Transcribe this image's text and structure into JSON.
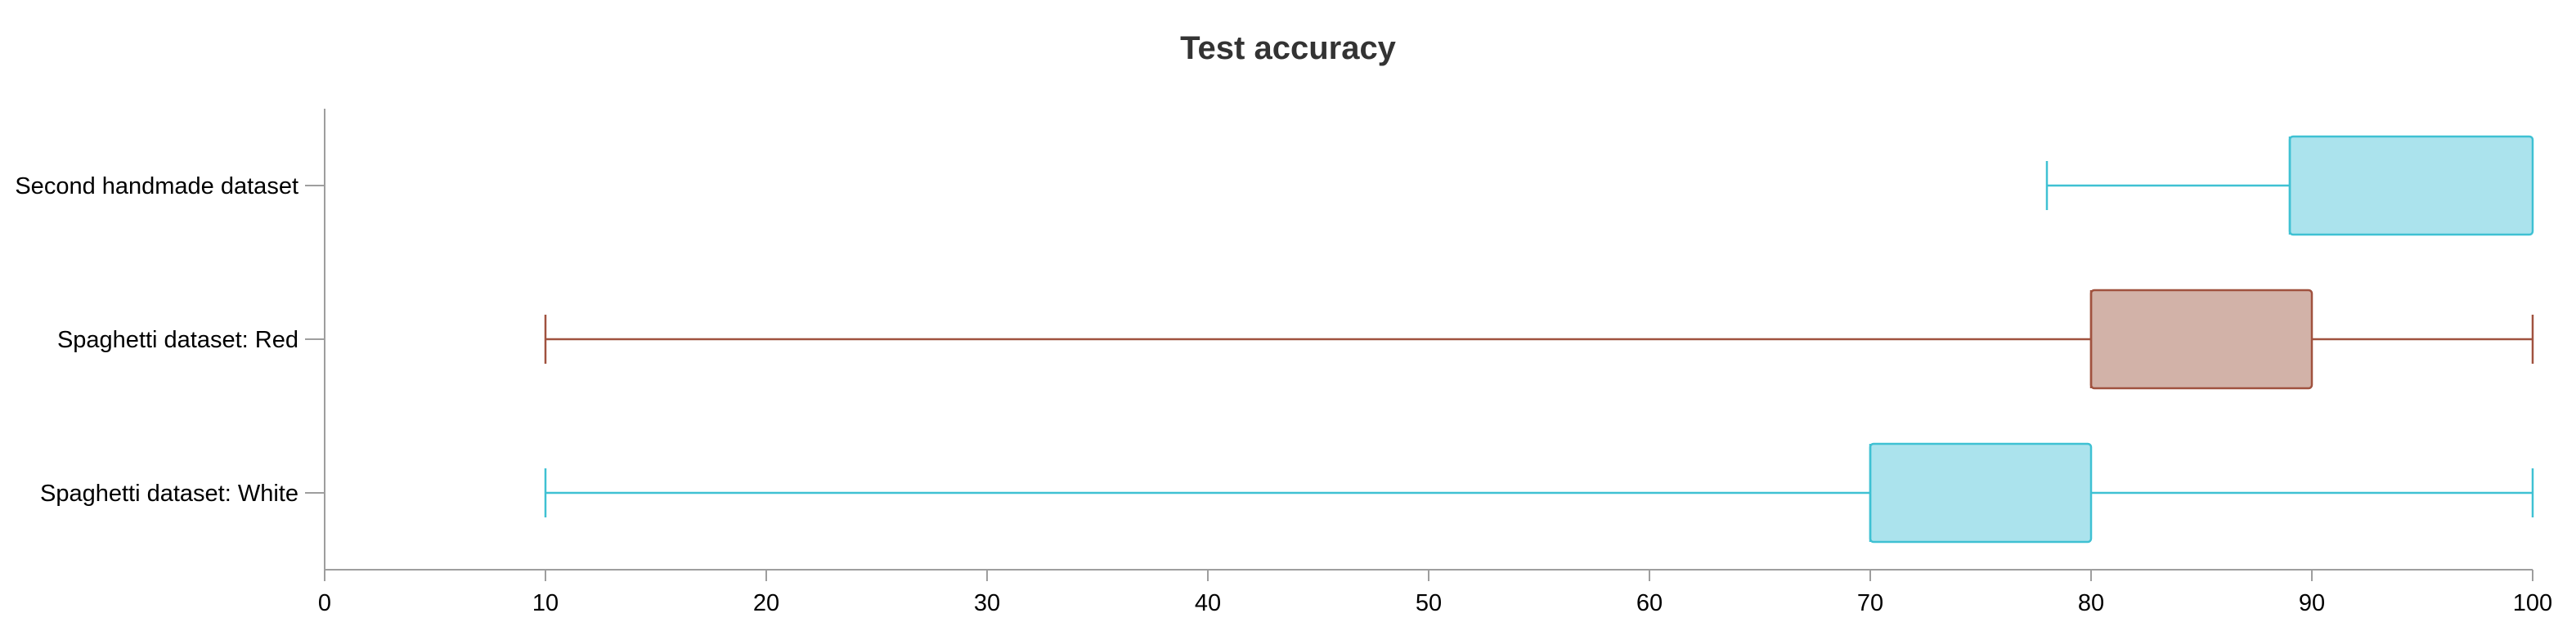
{
  "chart_data": {
    "type": "boxplot",
    "title": "Test accuracy",
    "xlabel": "",
    "ylabel": "",
    "orientation": "horizontal",
    "xlim": [
      0,
      100
    ],
    "xticks": [
      0,
      10,
      20,
      30,
      40,
      50,
      60,
      70,
      80,
      90,
      100
    ],
    "grid": false,
    "categories": [
      "Second handmade dataset",
      "Spaghetti dataset: Red",
      "Spaghetti dataset: White"
    ],
    "series": [
      {
        "category": "Second handmade dataset",
        "min": 78,
        "q1": 89,
        "median": 89,
        "q3": 100,
        "max": 100,
        "color": "#3fc1d3",
        "fill": "#abe3ed"
      },
      {
        "category": "Spaghetti dataset: Red",
        "min": 10,
        "q1": 80,
        "median": 80,
        "q3": 90,
        "max": 100,
        "color": "#a0523f",
        "fill": "#d2b2a8"
      },
      {
        "category": "Spaghetti dataset: White",
        "min": 10,
        "q1": 70,
        "median": 70,
        "q3": 80,
        "max": 100,
        "color": "#3fc1d3",
        "fill": "#abe3ed"
      }
    ]
  }
}
